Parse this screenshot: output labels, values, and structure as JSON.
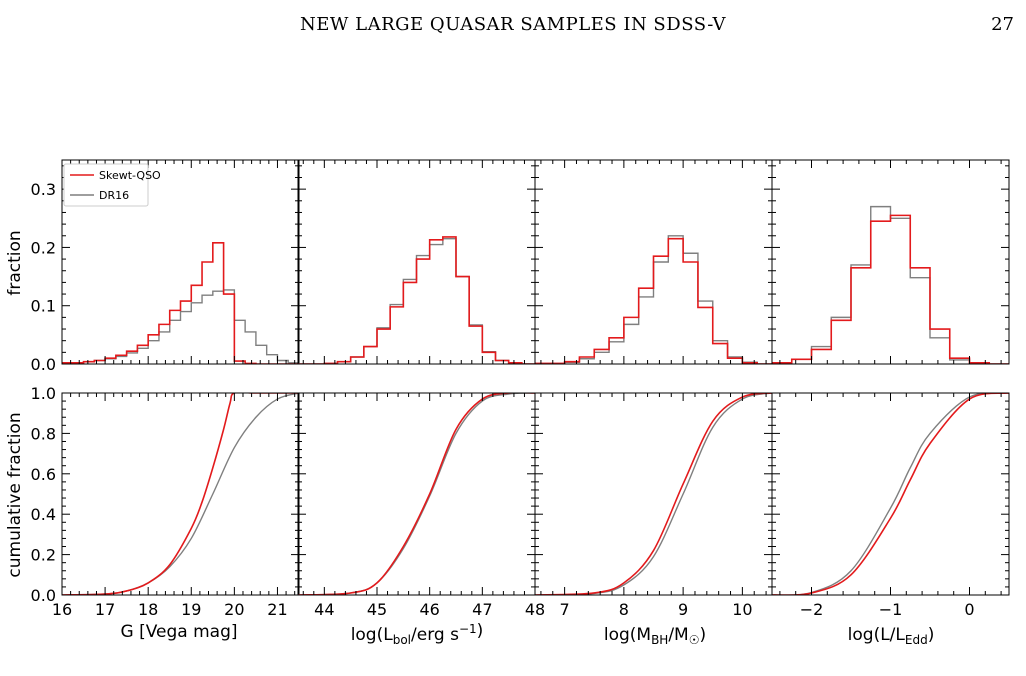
{
  "header": {
    "title": "NEW LARGE QUASAR SAMPLES IN SDSS-V",
    "page_number": "27"
  },
  "legend": {
    "placement": "top-left of first panel",
    "entries": [
      {
        "label": "Skewt-QSO",
        "color": "#e31a1c"
      },
      {
        "label": "DR16",
        "color": "#7f7f7f"
      }
    ]
  },
  "colors": {
    "skewt": "#e31a1c",
    "dr16": "#7f7f7f",
    "axis": "#000000"
  },
  "chart_data": [
    {
      "type": "histogram",
      "panel": "G",
      "row": "fraction",
      "ylabel": "fraction",
      "xlim": [
        16,
        21.5
      ],
      "ylim": [
        0,
        0.35
      ],
      "yticks": [
        0.0,
        0.1,
        0.2,
        0.3
      ],
      "ytick_labels": [
        "0.0",
        "0.1",
        "0.2",
        "0.3"
      ],
      "bin_edges": [
        16.0,
        16.5,
        16.75,
        17.0,
        17.25,
        17.5,
        17.75,
        18.0,
        18.25,
        18.5,
        18.75,
        19.0,
        19.25,
        19.5,
        19.75,
        20.0,
        20.25,
        20.5,
        20.75,
        21.0,
        21.25,
        21.5
      ],
      "series": [
        {
          "name": "Skewt-QSO",
          "values": [
            0.002,
            0.004,
            0.006,
            0.01,
            0.015,
            0.022,
            0.032,
            0.05,
            0.068,
            0.092,
            0.108,
            0.135,
            0.175,
            0.208,
            0.12,
            0.005,
            0.001,
            0.0,
            0.0,
            0.0,
            0.0
          ]
        },
        {
          "name": "DR16",
          "values": [
            0.002,
            0.004,
            0.006,
            0.009,
            0.013,
            0.019,
            0.027,
            0.04,
            0.055,
            0.075,
            0.09,
            0.105,
            0.118,
            0.125,
            0.127,
            0.075,
            0.055,
            0.032,
            0.016,
            0.006,
            0.002
          ]
        }
      ]
    },
    {
      "type": "histogram",
      "panel": "Lbol",
      "row": "fraction",
      "xlim": [
        43.5,
        48
      ],
      "ylim": [
        0,
        0.35
      ],
      "bin_edges": [
        43.5,
        44.0,
        44.25,
        44.5,
        44.75,
        45.0,
        45.25,
        45.5,
        45.75,
        46.0,
        46.25,
        46.5,
        46.75,
        47.0,
        47.25,
        47.5,
        47.75,
        48.0
      ],
      "series": [
        {
          "name": "Skewt-QSO",
          "values": [
            0.0,
            0.001,
            0.004,
            0.012,
            0.03,
            0.06,
            0.098,
            0.14,
            0.18,
            0.213,
            0.218,
            0.15,
            0.065,
            0.02,
            0.006,
            0.002,
            0.0
          ]
        },
        {
          "name": "DR16",
          "values": [
            0.0,
            0.001,
            0.004,
            0.012,
            0.03,
            0.062,
            0.102,
            0.145,
            0.186,
            0.205,
            0.215,
            0.15,
            0.067,
            0.021,
            0.006,
            0.002,
            0.0
          ]
        }
      ]
    },
    {
      "type": "histogram",
      "panel": "MBH",
      "row": "fraction",
      "xlim": [
        6.5,
        10.5
      ],
      "ylim": [
        0,
        0.35
      ],
      "bin_edges": [
        6.5,
        7.0,
        7.25,
        7.5,
        7.75,
        8.0,
        8.25,
        8.5,
        8.75,
        9.0,
        9.25,
        9.5,
        9.75,
        10.0,
        10.25,
        10.5
      ],
      "series": [
        {
          "name": "Skewt-QSO",
          "values": [
            0.001,
            0.004,
            0.012,
            0.025,
            0.045,
            0.08,
            0.13,
            0.185,
            0.215,
            0.175,
            0.097,
            0.035,
            0.01,
            0.002,
            0.0
          ]
        },
        {
          "name": "DR16",
          "values": [
            0.001,
            0.003,
            0.009,
            0.02,
            0.038,
            0.068,
            0.115,
            0.175,
            0.22,
            0.19,
            0.108,
            0.04,
            0.012,
            0.003,
            0.0
          ]
        }
      ]
    },
    {
      "type": "histogram",
      "panel": "Edd",
      "row": "fraction",
      "xlim": [
        -2.5,
        0.5
      ],
      "ylim": [
        0,
        0.35
      ],
      "bin_edges": [
        -2.5,
        -2.25,
        -2.0,
        -1.75,
        -1.5,
        -1.25,
        -1.0,
        -0.75,
        -0.5,
        -0.25,
        0.0,
        0.25,
        0.5
      ],
      "series": [
        {
          "name": "Skewt-QSO",
          "values": [
            0.002,
            0.008,
            0.025,
            0.075,
            0.165,
            0.245,
            0.255,
            0.165,
            0.06,
            0.01,
            0.002,
            0.0
          ]
        },
        {
          "name": "DR16",
          "values": [
            0.002,
            0.008,
            0.03,
            0.08,
            0.17,
            0.27,
            0.25,
            0.148,
            0.045,
            0.007,
            0.001,
            0.0
          ]
        }
      ]
    },
    {
      "type": "line",
      "panel": "G",
      "row": "cumulative",
      "ylabel": "cumulative fraction",
      "xlabel": "G [Vega mag]",
      "xlim": [
        16,
        21.5
      ],
      "ylim": [
        0,
        1
      ],
      "xticks": [
        16,
        17,
        18,
        19,
        20,
        21
      ],
      "xtick_labels": [
        "16",
        "17",
        "18",
        "19",
        "20",
        "21"
      ],
      "yticks": [
        0.0,
        0.2,
        0.4,
        0.6,
        0.8,
        1.0
      ],
      "ytick_labels": [
        "0.0",
        "0.2",
        "0.4",
        "0.6",
        "0.8",
        "1.0"
      ],
      "series": [
        {
          "name": "Skewt-QSO",
          "x": [
            16,
            17,
            17.5,
            18,
            18.5,
            19,
            19.25,
            19.5,
            19.75,
            19.9,
            20.0,
            20.5,
            21.5
          ],
          "y": [
            0,
            0.005,
            0.02,
            0.06,
            0.15,
            0.33,
            0.46,
            0.63,
            0.82,
            0.95,
            1.0,
            1.0,
            1.0
          ]
        },
        {
          "name": "DR16",
          "x": [
            16,
            17,
            17.5,
            18,
            18.5,
            19,
            19.5,
            20,
            20.5,
            21,
            21.5
          ],
          "y": [
            0,
            0.005,
            0.02,
            0.06,
            0.14,
            0.28,
            0.5,
            0.73,
            0.88,
            0.97,
            1.0
          ]
        }
      ]
    },
    {
      "type": "line",
      "panel": "Lbol",
      "row": "cumulative",
      "xlabel": "log(L_bol/erg s^-1)",
      "xlim": [
        43.5,
        48
      ],
      "ylim": [
        0,
        1
      ],
      "xticks": [
        44,
        45,
        46,
        47,
        48
      ],
      "xtick_labels": [
        "44",
        "45",
        "46",
        "47",
        "48"
      ],
      "series": [
        {
          "name": "Skewt-QSO",
          "x": [
            43.5,
            44.5,
            45,
            45.5,
            46,
            46.5,
            47,
            47.5,
            48
          ],
          "y": [
            0,
            0.01,
            0.06,
            0.24,
            0.5,
            0.82,
            0.97,
            1.0,
            1.0
          ]
        },
        {
          "name": "DR16",
          "x": [
            43.5,
            44.5,
            45,
            45.5,
            46,
            46.5,
            47,
            47.5,
            48
          ],
          "y": [
            0,
            0.01,
            0.06,
            0.23,
            0.49,
            0.8,
            0.96,
            0.995,
            1.0
          ]
        }
      ]
    },
    {
      "type": "line",
      "panel": "MBH",
      "row": "cumulative",
      "xlabel": "log(M_BH/M_sun)",
      "xlim": [
        6.5,
        10.5
      ],
      "ylim": [
        0,
        1
      ],
      "xticks": [
        7,
        8,
        9,
        10
      ],
      "xtick_labels": [
        "7",
        "8",
        "9",
        "10"
      ],
      "series": [
        {
          "name": "Skewt-QSO",
          "x": [
            6.5,
            7.5,
            8,
            8.5,
            9,
            9.5,
            10,
            10.5
          ],
          "y": [
            0,
            0.01,
            0.06,
            0.22,
            0.55,
            0.86,
            0.98,
            1.0
          ]
        },
        {
          "name": "DR16",
          "x": [
            6.5,
            7.5,
            8,
            8.5,
            9,
            9.5,
            10,
            10.5
          ],
          "y": [
            0,
            0.008,
            0.05,
            0.19,
            0.5,
            0.83,
            0.97,
            1.0
          ]
        }
      ]
    },
    {
      "type": "line",
      "panel": "Edd",
      "row": "cumulative",
      "xlabel": "log(L/L_Edd)",
      "xlim": [
        -2.5,
        0.5
      ],
      "ylim": [
        0,
        1
      ],
      "xticks": [
        -2,
        -1,
        0
      ],
      "xtick_labels": [
        "−2",
        "−1",
        "0"
      ],
      "series": [
        {
          "name": "Skewt-QSO",
          "x": [
            -2.5,
            -2,
            -1.5,
            -1,
            -0.75,
            -0.5,
            0,
            0.5
          ],
          "y": [
            0,
            0.01,
            0.1,
            0.38,
            0.57,
            0.75,
            0.97,
            1.0
          ]
        },
        {
          "name": "DR16",
          "x": [
            -2.5,
            -2,
            -1.5,
            -1,
            -0.75,
            -0.5,
            0,
            0.5
          ],
          "y": [
            0,
            0.012,
            0.12,
            0.43,
            0.63,
            0.8,
            0.98,
            1.0
          ]
        }
      ]
    }
  ]
}
